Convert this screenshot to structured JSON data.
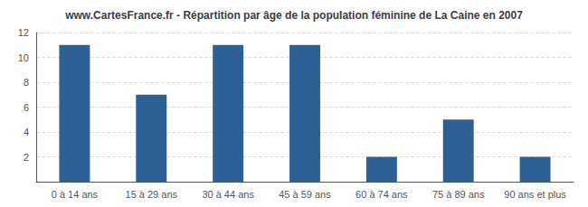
{
  "chart_data": {
    "type": "bar",
    "title": "www.CartesFrance.fr - Répartition par âge de la population féminine de La Caine en 2007",
    "categories": [
      "0 à 14 ans",
      "15 à 29 ans",
      "30 à 44 ans",
      "45 à 59 ans",
      "60 à 74 ans",
      "75 à 89 ans",
      "90 ans et plus"
    ],
    "values": [
      11,
      7,
      11,
      11,
      2,
      5,
      2
    ],
    "color": "#2e6096",
    "ylim": [
      0,
      12
    ],
    "yticks": [
      2,
      4,
      6,
      8,
      10,
      12
    ],
    "grid": true
  }
}
